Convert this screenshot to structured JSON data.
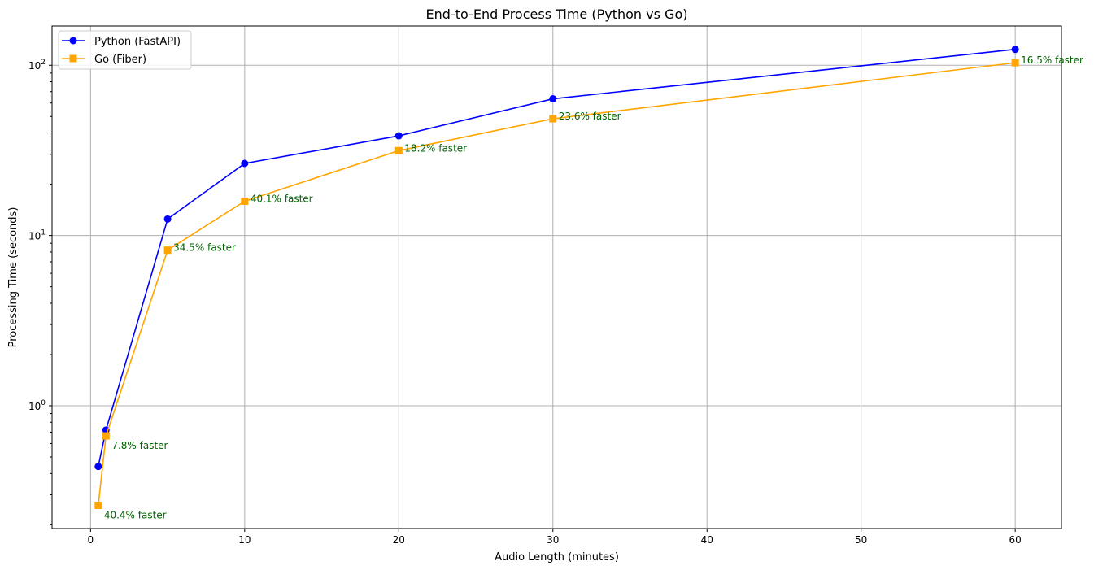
{
  "chart_data": {
    "type": "line",
    "title": "End-to-End Process Time (Python vs Go)",
    "xlabel": "Audio Length (minutes)",
    "ylabel": "Processing Time (seconds)",
    "xlim": [
      -2.5,
      63
    ],
    "ylim": [
      0.19,
      170
    ],
    "yscale": "log",
    "grid": true,
    "legend_position": "top-left",
    "x_ticks": [
      0,
      10,
      20,
      30,
      40,
      50,
      60
    ],
    "x_tick_labels": [
      "0",
      "10",
      "20",
      "30",
      "40",
      "50",
      "60"
    ],
    "y_major_ticks": [
      1,
      10,
      100
    ],
    "y_tick_labels": [
      {
        "base": "10",
        "exp": "0"
      },
      {
        "base": "10",
        "exp": "1"
      },
      {
        "base": "10",
        "exp": "2"
      }
    ],
    "y_minor_ticks": [
      0.2,
      0.3,
      0.4,
      0.5,
      0.6,
      0.7,
      0.8,
      0.9,
      2,
      3,
      4,
      5,
      6,
      7,
      8,
      9,
      20,
      30,
      40,
      50,
      60,
      70,
      80,
      90
    ],
    "x": [
      0.5,
      1,
      5,
      10,
      20,
      30,
      60
    ],
    "series": [
      {
        "name": "Python (FastAPI)",
        "color": "#0000ff",
        "marker": "circle",
        "values": [
          0.44,
          0.72,
          12.5,
          26.5,
          38.5,
          63.5,
          124
        ]
      },
      {
        "name": "Go (Fiber)",
        "color": "#ffa500",
        "marker": "square",
        "values": [
          0.26,
          0.665,
          8.2,
          15.9,
          31.5,
          48.5,
          103.5
        ]
      }
    ],
    "annotations": [
      {
        "text": "40.4% faster",
        "x": 0.5,
        "y": 0.26,
        "offset": "below-right"
      },
      {
        "text": "7.8% faster",
        "x": 1,
        "y": 0.665,
        "offset": "below-right"
      },
      {
        "text": "34.5% faster",
        "x": 5,
        "y": 8.2,
        "offset": "right"
      },
      {
        "text": "40.1% faster",
        "x": 10,
        "y": 15.9,
        "offset": "right"
      },
      {
        "text": "18.2% faster",
        "x": 20,
        "y": 31.5,
        "offset": "right"
      },
      {
        "text": "23.6% faster",
        "x": 30,
        "y": 48.5,
        "offset": "right"
      },
      {
        "text": "16.5% faster",
        "x": 60,
        "y": 103.5,
        "offset": "right"
      }
    ],
    "annotation_color": "#006400"
  }
}
